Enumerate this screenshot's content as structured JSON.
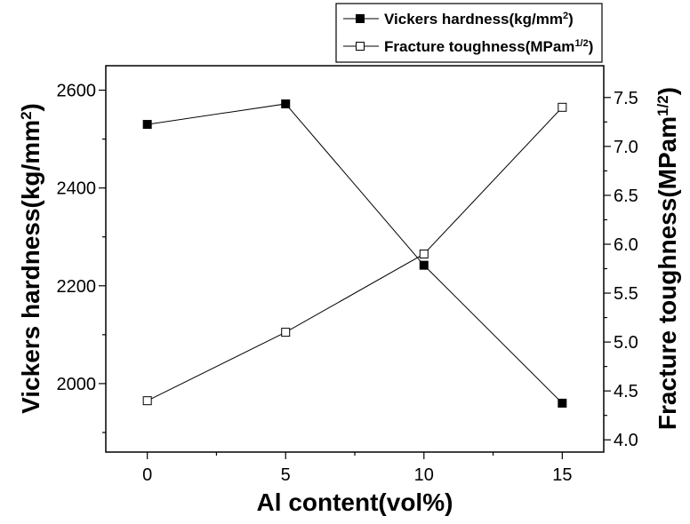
{
  "chart_data": {
    "type": "line",
    "xlabel": "Al content(vol%)",
    "ylabel_left": {
      "base": "Vickers hardness(kg/mm",
      "sup": "2",
      "tail": ")"
    },
    "ylabel_right": {
      "base": "Fracture toughness(MPam",
      "sup": "1/2",
      "tail": ")"
    },
    "x": [
      0,
      5,
      10,
      15
    ],
    "xlim": [
      -1.5,
      16.5
    ],
    "x_ticks": [
      "0",
      "5",
      "10",
      "15"
    ],
    "y_left_lim": [
      1860,
      2650
    ],
    "y_left_ticks": [
      "2000",
      "2200",
      "2400",
      "2600"
    ],
    "y_right_lim": [
      3.875,
      7.825
    ],
    "y_right_ticks": [
      "4.0",
      "4.5",
      "5.0",
      "5.5",
      "6.0",
      "6.5",
      "7.0",
      "7.5"
    ],
    "series": [
      {
        "name": "Vickers hardness(kg/mm",
        "name_sup": "2",
        "name_tail": ")",
        "axis": "left",
        "marker": "filled-square",
        "values": [
          2530,
          2572,
          2242,
          1960
        ]
      },
      {
        "name": "Fracture toughness(MPam",
        "name_sup": "1/2",
        "name_tail": ")",
        "axis": "right",
        "marker": "open-square",
        "values": [
          4.4,
          5.1,
          5.9,
          7.4
        ]
      }
    ],
    "legend_position": "top-right",
    "grid": false
  }
}
